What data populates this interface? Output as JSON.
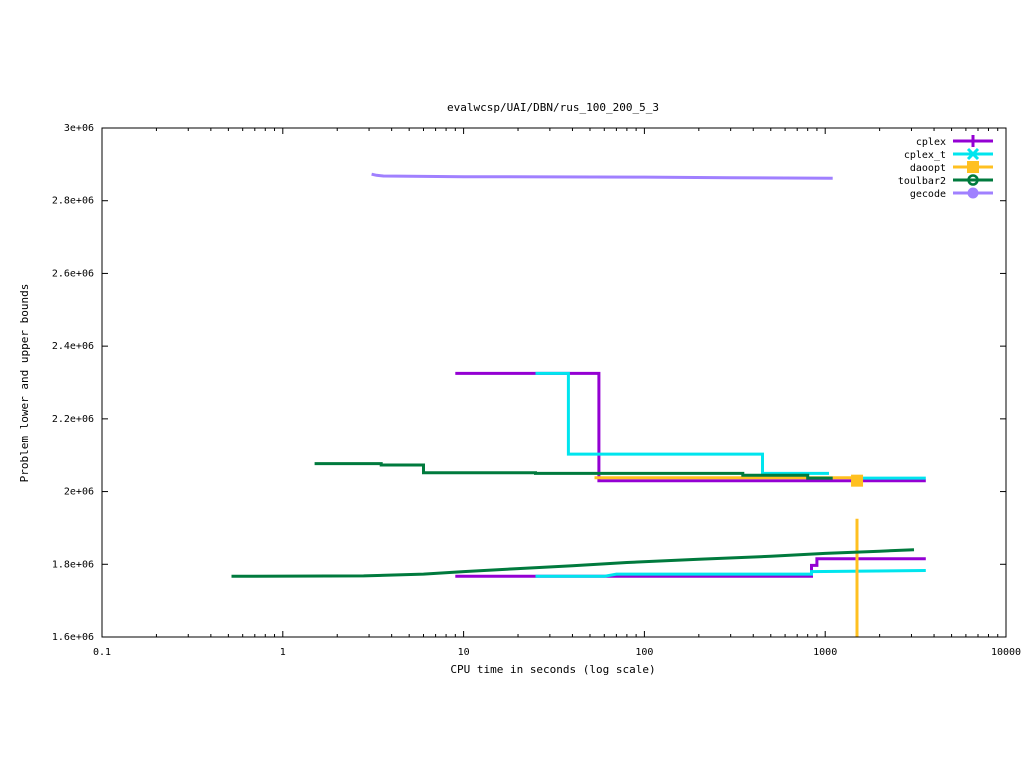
{
  "chart_data": {
    "type": "line",
    "title": "evalwcsp/UAI/DBN/rus_100_200_5_3",
    "xlabel": "CPU time in seconds (log scale)",
    "ylabel": "Problem lower and upper bounds",
    "x_scale": "log",
    "xlim": [
      0.1,
      10000
    ],
    "ylim": [
      1600000,
      3000000
    ],
    "x_ticks": [
      {
        "value": 0.1,
        "label": "0.1"
      },
      {
        "value": 1,
        "label": "1"
      },
      {
        "value": 10,
        "label": "10"
      },
      {
        "value": 100,
        "label": "100"
      },
      {
        "value": 1000,
        "label": "1000"
      },
      {
        "value": 10000,
        "label": "10000"
      }
    ],
    "y_ticks": [
      {
        "value": 1600000,
        "label": "1.6e+06"
      },
      {
        "value": 1800000,
        "label": "1.8e+06"
      },
      {
        "value": 2000000,
        "label": "2e+06"
      },
      {
        "value": 2200000,
        "label": "2.2e+06"
      },
      {
        "value": 2400000,
        "label": "2.4e+06"
      },
      {
        "value": 2600000,
        "label": "2.6e+06"
      },
      {
        "value": 2800000,
        "label": "2.8e+06"
      },
      {
        "value": 3000000,
        "label": "3e+06"
      }
    ],
    "grid": false,
    "legend_position": "top-right",
    "series": [
      {
        "name": "cplex",
        "color": "#9400d3",
        "marker": "plus",
        "lines": [
          {
            "kind": "upper",
            "points": [
              [
                9,
                2325000
              ],
              [
                56,
                2325000
              ],
              [
                56,
                2030000
              ],
              [
                3600,
                2030000
              ]
            ]
          },
          {
            "kind": "lower",
            "points": [
              [
                9,
                1767000
              ],
              [
                840,
                1767000
              ],
              [
                840,
                1797000
              ],
              [
                900,
                1797000
              ],
              [
                900,
                1815000
              ],
              [
                3600,
                1815000
              ]
            ]
          }
        ]
      },
      {
        "name": "cplex_t",
        "color": "#00e5ee",
        "marker": "cross",
        "lines": [
          {
            "kind": "upper",
            "points": [
              [
                25,
                2325000
              ],
              [
                38,
                2325000
              ],
              [
                38,
                2103000
              ],
              [
                450,
                2103000
              ],
              [
                450,
                2050000
              ],
              [
                1050,
                2050000
              ]
            ]
          },
          {
            "kind": "upper",
            "points": [
              [
                1500,
                2037000
              ],
              [
                3600,
                2037000
              ]
            ]
          },
          {
            "kind": "lower",
            "points": [
              [
                25,
                1767000
              ],
              [
                60,
                1767000
              ],
              [
                70,
                1773000
              ],
              [
                840,
                1773000
              ],
              [
                840,
                1780000
              ],
              [
                3600,
                1783000
              ]
            ]
          }
        ]
      },
      {
        "name": "daoopt",
        "color": "#ffc020",
        "marker": "square",
        "lines": [
          {
            "kind": "upper",
            "points": [
              [
                53,
                2038000
              ],
              [
                1500,
                2038000
              ]
            ]
          },
          {
            "kind": "lower",
            "points": [
              [
                1500,
                1600000
              ],
              [
                1500,
                1925000
              ]
            ]
          }
        ],
        "points": [
          [
            1500,
            2030000
          ]
        ]
      },
      {
        "name": "toulbar2",
        "color": "#007a3d",
        "marker": "circle",
        "lines": [
          {
            "kind": "upper",
            "points": [
              [
                1.5,
                2077000
              ],
              [
                3.5,
                2077000
              ],
              [
                3.5,
                2073000
              ],
              [
                6,
                2073000
              ],
              [
                6,
                2052000
              ],
              [
                25,
                2052000
              ],
              [
                25,
                2050000
              ],
              [
                350,
                2050000
              ],
              [
                350,
                2045000
              ],
              [
                800,
                2045000
              ],
              [
                800,
                2037000
              ],
              [
                1100,
                2037000
              ]
            ]
          },
          {
            "kind": "lower",
            "points": [
              [
                0.52,
                1767000
              ],
              [
                2.8,
                1768000
              ],
              [
                6,
                1773000
              ],
              [
                10,
                1780000
              ],
              [
                20,
                1788000
              ],
              [
                40,
                1796000
              ],
              [
                80,
                1805000
              ],
              [
                200,
                1814000
              ],
              [
                500,
                1822000
              ],
              [
                1000,
                1830000
              ],
              [
                2000,
                1836000
              ],
              [
                3100,
                1840000
              ]
            ]
          }
        ]
      },
      {
        "name": "gecode",
        "color": "#a080ff",
        "marker": "disc",
        "lines": [
          {
            "kind": "upper",
            "points": [
              [
                3.1,
                2873000
              ],
              [
                3.3,
                2870000
              ],
              [
                3.6,
                2868000
              ],
              [
                10,
                2866000
              ],
              [
                100,
                2865000
              ],
              [
                300,
                2863000
              ],
              [
                1100,
                2862000
              ]
            ]
          }
        ]
      }
    ]
  }
}
